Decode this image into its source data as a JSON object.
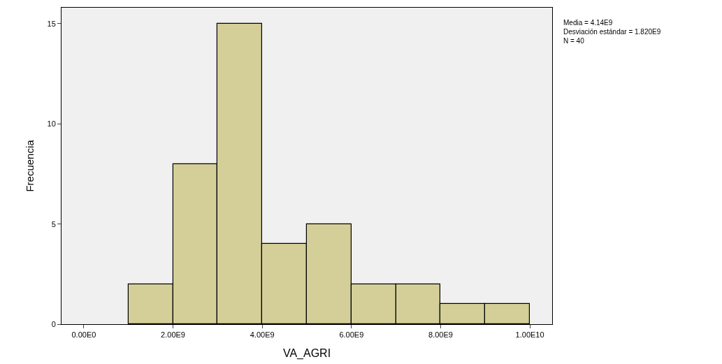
{
  "chart_data": {
    "type": "histogram",
    "xlabel": "VA_AGRI",
    "ylabel": "Frecuencia",
    "bins": [
      1000000000,
      2000000000,
      3000000000,
      4000000000,
      5000000000,
      6000000000,
      7000000000,
      8000000000,
      9000000000,
      10000000000
    ],
    "values": [
      2,
      8,
      15,
      4,
      5,
      2,
      2,
      1,
      1
    ],
    "color": "#d4cf98",
    "xlim": [
      -500000000,
      10500000000
    ],
    "xticks": [
      {
        "value": 0,
        "label": "0.00E0"
      },
      {
        "value": 2000000000,
        "label": "2.00E9"
      },
      {
        "value": 4000000000,
        "label": "4.00E9"
      },
      {
        "value": 6000000000,
        "label": "6.00E9"
      },
      {
        "value": 8000000000,
        "label": "8.00E9"
      },
      {
        "value": 10000000000,
        "label": "1.00E10"
      }
    ],
    "ylim": [
      0,
      15.8
    ],
    "yticks": [
      0,
      5,
      10,
      15
    ],
    "grid": false,
    "annotations": [
      "Media = 4.14E9",
      "Desviación estándar = 1.820E9",
      "N = 40"
    ]
  }
}
